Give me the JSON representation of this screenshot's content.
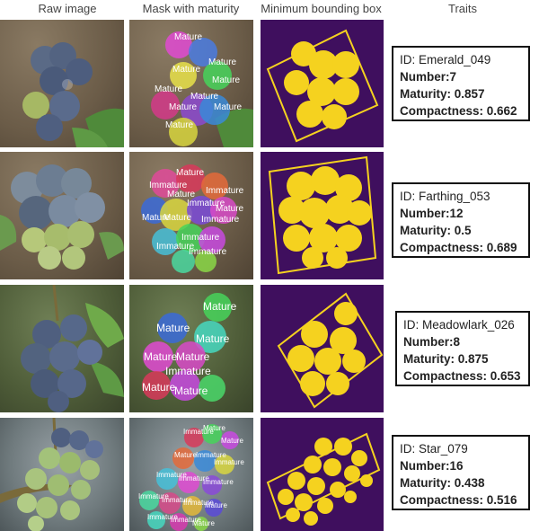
{
  "headers": {
    "raw": "Raw image",
    "mask": "Mask with maturity",
    "bbox": "Minimum bounding box",
    "traits": "Traits"
  },
  "labels": {
    "mature": "Mature",
    "immature": "Immature"
  },
  "rows": [
    {
      "id": "ID: Emerald_049",
      "number": "Number:7",
      "maturity": "Maturity: 0.857",
      "compactness": "Compactness: 0.662"
    },
    {
      "id": "ID: Farthing_053",
      "number": "Number:12",
      "maturity": "Maturity: 0.5",
      "compactness": "Compactness: 0.689"
    },
    {
      "id": "ID: Meadowlark_026",
      "number": "Number:8",
      "maturity": "Maturity: 0.875",
      "compactness": "Compactness: 0.653"
    },
    {
      "id": "ID: Star_079",
      "number": "Number:16",
      "maturity": "Maturity: 0.438",
      "compactness": "Compactness: 0.516"
    }
  ],
  "colors": {
    "bbox_bg": "#3f0f5e",
    "bbox_fg": "#f5d21f"
  }
}
